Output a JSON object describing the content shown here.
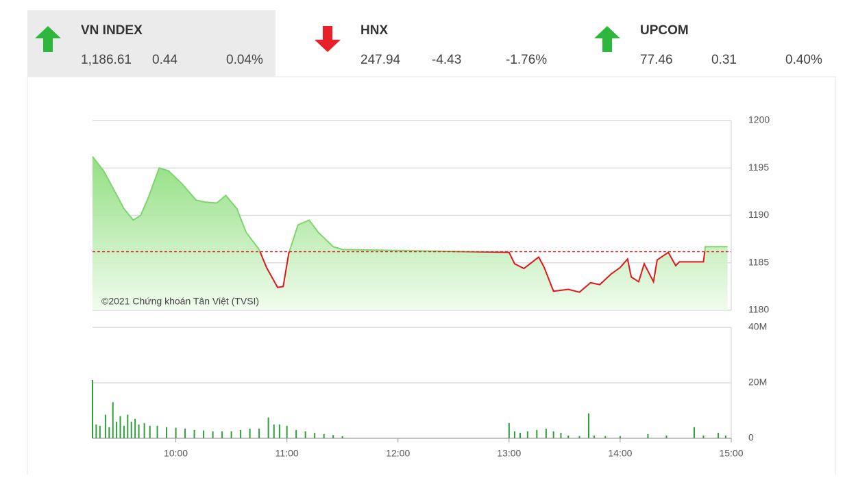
{
  "indices": [
    {
      "name": "VN INDEX",
      "value": "1,186.61",
      "change": "0.44",
      "percent": "0.04%",
      "direction": "up",
      "selected": true
    },
    {
      "name": "HNX",
      "value": "247.94",
      "change": "-4.43",
      "percent": "-1.76%",
      "direction": "down",
      "selected": false
    },
    {
      "name": "UPCOM",
      "value": "77.46",
      "change": "0.31",
      "percent": "0.40%",
      "direction": "up",
      "selected": false
    }
  ],
  "chart_data": [
    {
      "type": "area",
      "watermark": "©2021 Chứng khoán Tân Việt (TVSI)",
      "x": [
        555,
        561,
        566,
        572,
        577,
        581,
        585,
        591,
        596,
        603,
        611,
        616,
        622,
        627,
        633,
        638,
        645,
        649,
        655,
        658,
        661,
        666,
        672,
        677,
        685,
        690,
        780,
        783,
        788,
        796,
        799,
        804,
        812,
        818,
        824,
        829,
        835,
        840,
        844,
        846,
        850,
        853,
        858,
        860,
        866,
        870,
        872,
        885,
        886,
        898
      ],
      "values": [
        1196.2,
        1194.7,
        1192.9,
        1190.7,
        1189.5,
        1190,
        1191.8,
        1195,
        1194.7,
        1193.4,
        1191.6,
        1191.4,
        1191.3,
        1192.1,
        1190.7,
        1188.2,
        1186.4,
        1184.5,
        1182.4,
        1182.5,
        1186,
        1189,
        1189.5,
        1188.2,
        1186.7,
        1186.4,
        1186.1,
        1184.9,
        1184.4,
        1185.6,
        1184.5,
        1182,
        1182.2,
        1181.9,
        1182.9,
        1182.7,
        1183.8,
        1184.5,
        1185.4,
        1183.5,
        1183,
        1184.9,
        1183,
        1185.3,
        1186.1,
        1184.7,
        1185.1,
        1185.1,
        1186.7,
        1186.7
      ],
      "reference": 1186.17,
      "up_color": "#7ed56f",
      "down_color": "#e0161b",
      "xlim": [
        555,
        900
      ],
      "ylim": [
        1180,
        1200
      ],
      "yticks": [
        1180,
        1185,
        1190,
        1195,
        1200
      ],
      "grid": true
    },
    {
      "type": "bar",
      "color": "#2e9e3a",
      "x": [
        555,
        557,
        559,
        562,
        564,
        566,
        568,
        570,
        572,
        574,
        576,
        578,
        580,
        583,
        586,
        590,
        595,
        600,
        605,
        610,
        615,
        620,
        625,
        630,
        635,
        640,
        645,
        650,
        653,
        656,
        660,
        665,
        670,
        675,
        680,
        685,
        690,
        780,
        783,
        786,
        790,
        795,
        800,
        804,
        808,
        812,
        818,
        823,
        826,
        832,
        840,
        855,
        865,
        880,
        885,
        893,
        897
      ],
      "values": [
        21000000,
        5000000,
        4500000,
        8500000,
        4000000,
        13000000,
        6000000,
        8000000,
        4500000,
        8500000,
        6000000,
        7000000,
        5000000,
        5500000,
        4500000,
        4500000,
        4000000,
        3800000,
        3500000,
        3000000,
        2800000,
        2500000,
        2500000,
        2500000,
        3000000,
        3500000,
        3500000,
        7500000,
        5000000,
        5000000,
        4500000,
        3000000,
        2500000,
        2000000,
        1500000,
        1200000,
        800000,
        5500000,
        2500000,
        2000000,
        2500000,
        3000000,
        3500000,
        2500000,
        2000000,
        1000000,
        800000,
        9000000,
        1000000,
        800000,
        800000,
        1500000,
        1000000,
        4000000,
        1000000,
        2000000,
        1000000
      ],
      "xlim": [
        555,
        900
      ],
      "xticks": [
        {
          "value": 600,
          "label": "10:00"
        },
        {
          "value": 660,
          "label": "11:00"
        },
        {
          "value": 720,
          "label": "12:00"
        },
        {
          "value": 780,
          "label": "13:00"
        },
        {
          "value": 840,
          "label": "14:00"
        },
        {
          "value": 900,
          "label": "15:00"
        }
      ],
      "ylim": [
        0,
        40000000
      ],
      "yticks": [
        0,
        {
          "value": 20000000,
          "label": "20M"
        },
        {
          "value": 40000000,
          "label": "40M"
        }
      ],
      "grid": true
    }
  ]
}
